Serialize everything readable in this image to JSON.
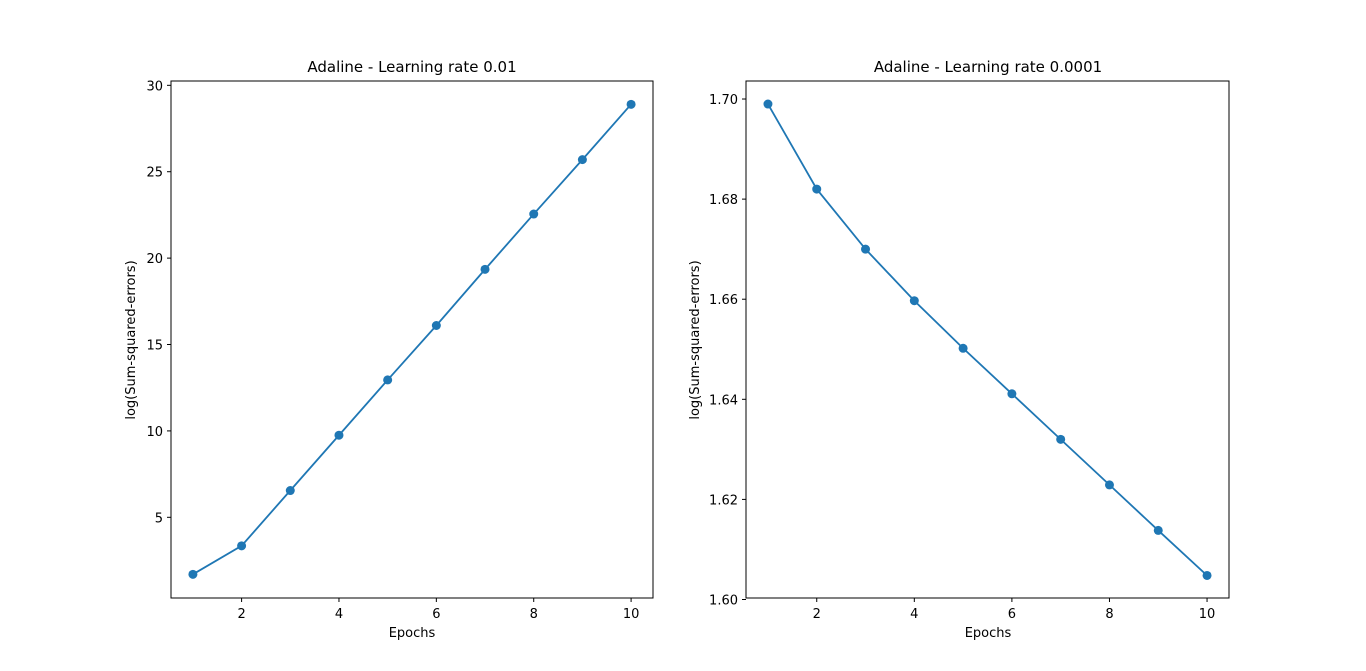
{
  "chart_data": [
    {
      "type": "line",
      "title": "Adaline - Learning rate 0.01",
      "xlabel": "Epochs",
      "ylabel": "log(Sum-squared-errors)",
      "xlim": [
        0.55,
        10.45
      ],
      "ylim": [
        0.33,
        30.25
      ],
      "xticks": [
        2,
        4,
        6,
        8,
        10
      ],
      "xtick_labels": [
        "2",
        "4",
        "6",
        "8",
        "10"
      ],
      "yticks": [
        5,
        10,
        15,
        20,
        25,
        30
      ],
      "ytick_labels": [
        "5",
        "10",
        "15",
        "20",
        "25",
        "30"
      ],
      "grid": false,
      "color": "#1f77b4",
      "marker": "o",
      "x": [
        1,
        2,
        3,
        4,
        5,
        6,
        7,
        8,
        9,
        10
      ],
      "y": [
        1.7,
        3.35,
        6.55,
        9.75,
        12.95,
        16.1,
        19.35,
        22.55,
        25.7,
        28.9
      ]
    },
    {
      "type": "line",
      "title": "Adaline - Learning rate 0.0001",
      "xlabel": "Epochs",
      "ylabel": "log(Sum-squared-errors)",
      "xlim": [
        0.55,
        10.45
      ],
      "ylim": [
        1.6003,
        1.7036
      ],
      "xticks": [
        2,
        4,
        6,
        8,
        10
      ],
      "xtick_labels": [
        "2",
        "4",
        "6",
        "8",
        "10"
      ],
      "yticks": [
        1.6,
        1.62,
        1.64,
        1.66,
        1.68,
        1.7
      ],
      "ytick_labels": [
        "1.60",
        "1.62",
        "1.64",
        "1.66",
        "1.68",
        "1.70"
      ],
      "grid": false,
      "color": "#1f77b4",
      "marker": "o",
      "x": [
        1,
        2,
        3,
        4,
        5,
        6,
        7,
        8,
        9,
        10
      ],
      "y": [
        1.699,
        1.682,
        1.67,
        1.6597,
        1.6502,
        1.6411,
        1.632,
        1.6229,
        1.6138,
        1.6048
      ]
    }
  ]
}
